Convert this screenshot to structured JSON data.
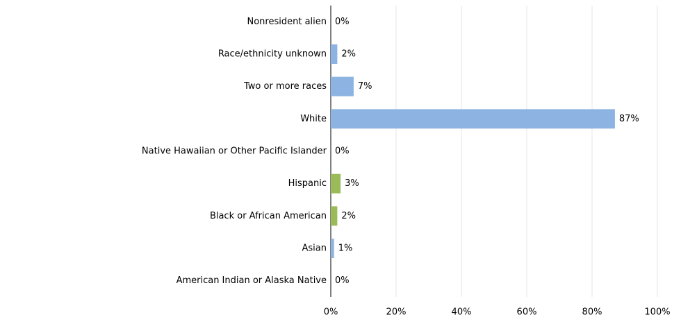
{
  "chart_data": {
    "type": "hbar",
    "categories": [
      "Nonresident alien",
      "Race/ethnicity unknown",
      "Two or more races",
      "White",
      "Native Hawaiian or Other Pacific Islander",
      "Hispanic",
      "Black or African American",
      "Asian",
      "American Indian or Alaska Native"
    ],
    "values": [
      0,
      2,
      7,
      87,
      0,
      3,
      2,
      1,
      0
    ],
    "value_labels": [
      "0%",
      "2%",
      "7%",
      "87%",
      "0%",
      "3%",
      "2%",
      "1%",
      "0%"
    ],
    "colors": [
      "#8db3e2",
      "#8db3e2",
      "#8db3e2",
      "#8db3e2",
      "#9bbb59",
      "#9bbb59",
      "#9bbb59",
      "#8db3e2",
      "#8db3e2"
    ],
    "xlim": [
      0,
      100
    ],
    "xticks": [
      {
        "value": 0,
        "label": "0%"
      },
      {
        "value": 20,
        "label": "20%"
      },
      {
        "value": 40,
        "label": "40%"
      },
      {
        "value": 60,
        "label": "60%"
      },
      {
        "value": 80,
        "label": "80%"
      },
      {
        "value": 100,
        "label": "100%"
      }
    ],
    "grid": true
  }
}
